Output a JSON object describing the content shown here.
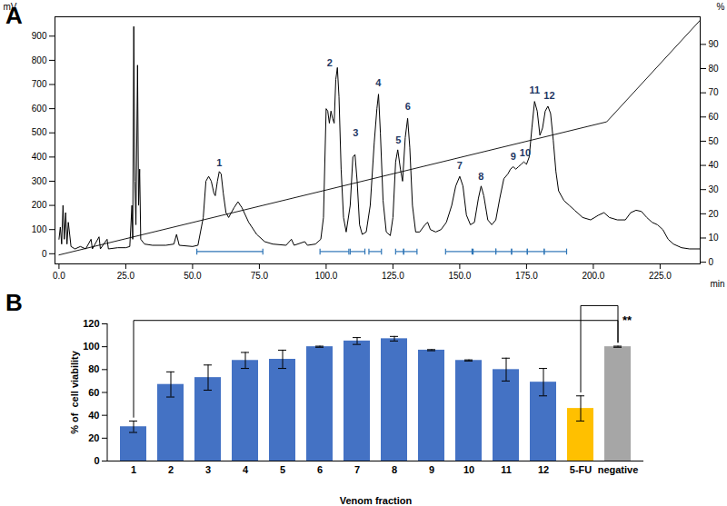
{
  "chart_data": [
    {
      "type": "line",
      "panel": "A",
      "xlabel": "min",
      "ylabel": "mV",
      "y2label": "%",
      "xlim": [
        -1.5,
        240
      ],
      "xticks": [
        {
          "value": 0,
          "label": "0.0"
        },
        {
          "value": 25,
          "label": "25.0"
        },
        {
          "value": 50,
          "label": "50.0"
        },
        {
          "value": 75,
          "label": "75.0"
        },
        {
          "value": 100,
          "label": "100.0"
        },
        {
          "value": 125,
          "label": "125.0"
        },
        {
          "value": 150,
          "label": "150.0"
        },
        {
          "value": 175,
          "label": "175.0"
        },
        {
          "value": 200,
          "label": "200.0"
        },
        {
          "value": 225,
          "label": "225.0"
        }
      ],
      "ylim": [
        -42,
        980
      ],
      "yticks": [
        0,
        100,
        200,
        300,
        400,
        500,
        600,
        700,
        800,
        900
      ],
      "y2lim": [
        -0.7,
        101.4
      ],
      "y2ticks": [
        0,
        10,
        20,
        30,
        40,
        50,
        60,
        70,
        80,
        90
      ],
      "series": [
        {
          "color": "#000000",
          "x": [
            0,
            0.5,
            1,
            1.5,
            2,
            2.5,
            3,
            3.5,
            4.5,
            6,
            8,
            10,
            12,
            12.5,
            15,
            15.5,
            18,
            18.5,
            22,
            25,
            26.5,
            27.3,
            27.6,
            28,
            28.4,
            28.8,
            29.4,
            29.8,
            30.2,
            30.6,
            32,
            35,
            40,
            43,
            44,
            45,
            50,
            52,
            54,
            55,
            56,
            57,
            58,
            58.5,
            59.3,
            60,
            60.7,
            61.5,
            62.5,
            63.5,
            65.5,
            67,
            68.5,
            71,
            74,
            77,
            80,
            85,
            87,
            88,
            92,
            93,
            96,
            98,
            99,
            100,
            100.6,
            101.2,
            101.8,
            102.4,
            103,
            103.6,
            104.2,
            104.8,
            105.6,
            106.5,
            107.5,
            109,
            110,
            110.8,
            111.6,
            112.5,
            113.5,
            115,
            116.5,
            118,
            119,
            119.6,
            120.3,
            121.3,
            122.5,
            124,
            125,
            126,
            126.8,
            127.8,
            128.6,
            129.6,
            130.5,
            131.3,
            132.3,
            133.5,
            135,
            137,
            138,
            139,
            141,
            143,
            145,
            147,
            148.5,
            150,
            151.2,
            152.5,
            154,
            155.5,
            157,
            158,
            159,
            160.5,
            162,
            163.5,
            165,
            166.5,
            168,
            169,
            170,
            171,
            172,
            173,
            174,
            175,
            176,
            177,
            178,
            179,
            180,
            181,
            182,
            183,
            184,
            185,
            186,
            187,
            189,
            191,
            193,
            196,
            199,
            202,
            204,
            206,
            209,
            212,
            214,
            216,
            218,
            220,
            222,
            224,
            226,
            228,
            230,
            233,
            236,
            240
          ],
          "values": [
            60,
            110,
            40,
            200,
            60,
            170,
            40,
            130,
            30,
            20,
            30,
            20,
            60,
            20,
            70,
            20,
            60,
            20,
            25,
            25,
            30,
            200,
            60,
            940,
            300,
            120,
            780,
            200,
            350,
            60,
            40,
            35,
            35,
            40,
            80,
            35,
            30,
            35,
            150,
            300,
            320,
            300,
            250,
            240,
            300,
            340,
            330,
            250,
            170,
            150,
            190,
            215,
            190,
            130,
            80,
            50,
            40,
            35,
            60,
            35,
            50,
            35,
            40,
            60,
            150,
            600,
            590,
            540,
            590,
            560,
            540,
            720,
            770,
            650,
            350,
            150,
            90,
            200,
            400,
            410,
            300,
            120,
            80,
            90,
            200,
            460,
            600,
            660,
            500,
            220,
            90,
            75,
            150,
            380,
            430,
            350,
            300,
            480,
            560,
            440,
            200,
            90,
            90,
            120,
            130,
            100,
            90,
            100,
            130,
            200,
            280,
            320,
            280,
            160,
            120,
            130,
            230,
            280,
            240,
            140,
            120,
            140,
            230,
            310,
            330,
            350,
            360,
            350,
            360,
            370,
            380,
            370,
            400,
            520,
            630,
            590,
            490,
            520,
            590,
            610,
            580,
            470,
            340,
            260,
            220,
            200,
            180,
            150,
            140,
            160,
            170,
            150,
            140,
            140,
            170,
            180,
            175,
            150,
            130,
            120,
            100,
            60,
            40,
            25,
            20,
            20
          ]
        },
        {
          "color": "#000000",
          "axis": "y2",
          "x": [
            0,
            205,
            240
          ],
          "values": [
            3,
            58,
            100
          ]
        }
      ],
      "annotations": [
        {
          "text": "1",
          "x": 60,
          "y": 375
        },
        {
          "text": "2",
          "x": 101.3,
          "y": 790
        },
        {
          "text": "3",
          "x": 111,
          "y": 500
        },
        {
          "text": "4",
          "x": 119.5,
          "y": 705
        },
        {
          "text": "5",
          "x": 127,
          "y": 470
        },
        {
          "text": "6",
          "x": 130.6,
          "y": 610
        },
        {
          "text": "7",
          "x": 150,
          "y": 365
        },
        {
          "text": "8",
          "x": 158,
          "y": 320
        },
        {
          "text": "9",
          "x": 170,
          "y": 400
        },
        {
          "text": "10",
          "x": 174.5,
          "y": 415
        },
        {
          "text": "11",
          "x": 178,
          "y": 675
        },
        {
          "text": "12",
          "x": 183.5,
          "y": 655
        }
      ],
      "fractions": [
        [
          51.6,
          76.3
        ],
        [
          97.7,
          108.5
        ],
        [
          109,
          114.5
        ],
        [
          116,
          120.7
        ],
        [
          126,
          129
        ],
        [
          129,
          134
        ],
        [
          144.7,
          154.6
        ],
        [
          155,
          163.5
        ],
        [
          163.5,
          169.4
        ],
        [
          169.4,
          175.3
        ],
        [
          175.3,
          181.6
        ],
        [
          181.6,
          190
        ]
      ]
    },
    {
      "type": "bar",
      "panel": "B",
      "xlabel": "Venom fraction",
      "ylabel": "% of  cell viability",
      "categories": [
        "1",
        "2",
        "3",
        "4",
        "5",
        "6",
        "7",
        "8",
        "9",
        "10",
        "11",
        "12",
        "5-FU",
        "negative"
      ],
      "values": [
        30,
        67,
        73,
        88,
        89,
        100,
        105,
        107,
        97,
        88,
        80,
        69,
        46,
        100
      ],
      "errors": [
        5,
        11,
        11,
        7,
        8,
        0.5,
        3,
        2,
        0.5,
        0.5,
        10,
        12,
        11,
        0.5
      ],
      "colors": [
        "#4472c4",
        "#4472c4",
        "#4472c4",
        "#4472c4",
        "#4472c4",
        "#4472c4",
        "#4472c4",
        "#4472c4",
        "#4472c4",
        "#4472c4",
        "#4472c4",
        "#4472c4",
        "#ffc000",
        "#a6a6a6"
      ],
      "ylim": [
        0,
        120
      ],
      "yticks": [
        0,
        20,
        40,
        60,
        80,
        100,
        120
      ],
      "significance": [
        {
          "from": "1",
          "to": "negative",
          "label": "**"
        },
        {
          "from": "5-FU",
          "to": "negative"
        }
      ]
    }
  ]
}
